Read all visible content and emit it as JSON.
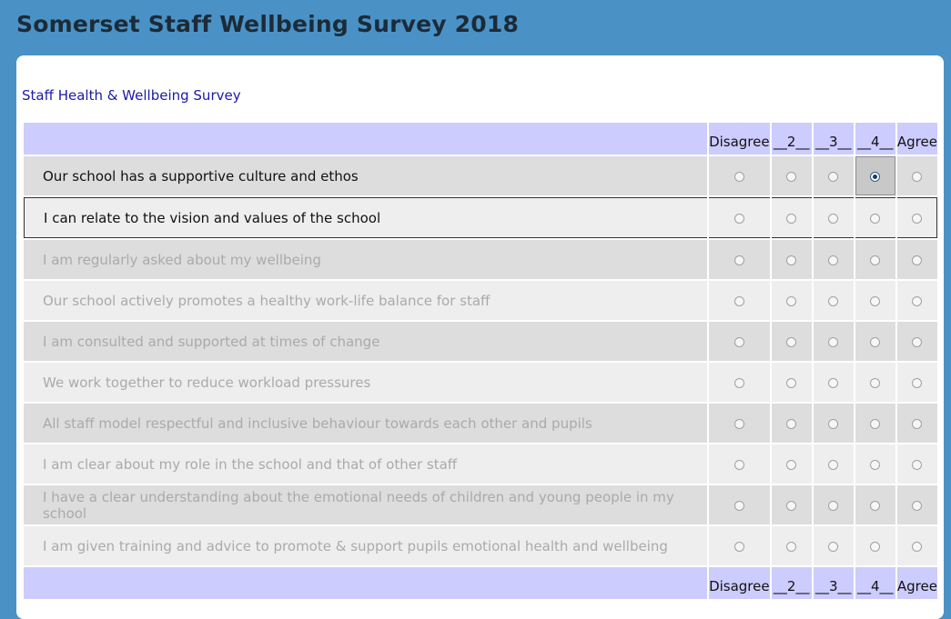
{
  "app": {
    "title": "Somerset Staff Wellbeing Survey 2018"
  },
  "survey": {
    "section_title": "Staff Health & Wellbeing Survey",
    "scale": [
      "Disagree",
      "__2__",
      "__3__",
      "__4__",
      "Agree"
    ],
    "questions": [
      {
        "text": "Our school has a supportive culture and ethos",
        "selected": "__4__"
      },
      {
        "text": "I can relate to the vision and values of the school",
        "selected": null
      },
      {
        "text": "I am regularly asked about my wellbeing",
        "selected": null
      },
      {
        "text": "Our school actively promotes a healthy work-life balance for staff",
        "selected": null
      },
      {
        "text": "I am consulted and supported at times of change",
        "selected": null
      },
      {
        "text": "We work together to reduce workload pressures",
        "selected": null
      },
      {
        "text": "All staff model respectful and inclusive behaviour towards each other and pupils",
        "selected": null
      },
      {
        "text": "I am clear about my role in the school and that of other staff",
        "selected": null
      },
      {
        "text": "I have a clear understanding about the emotional needs of children and young people in my school",
        "selected": null
      },
      {
        "text": "I am given training and advice to promote & support pupils emotional health and wellbeing",
        "selected": null
      }
    ]
  },
  "colors": {
    "background": "#4a92c6",
    "header_row": "#ccccff",
    "link_text": "#1a1aa8"
  }
}
